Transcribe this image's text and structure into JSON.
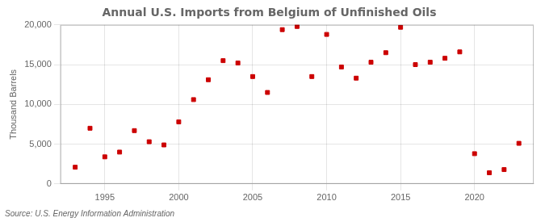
{
  "chart_data": {
    "type": "scatter",
    "title": "Annual U.S. Imports from Belgium of Unfinished Oils",
    "ylabel": "Thousand Barrels",
    "source": "Source: U.S. Energy Information Administration",
    "x": [
      1993,
      1994,
      1995,
      1996,
      1997,
      1998,
      1999,
      2000,
      2001,
      2002,
      2003,
      2004,
      2005,
      2006,
      2007,
      2008,
      2009,
      2010,
      2011,
      2012,
      2013,
      2014,
      2015,
      2016,
      2017,
      2018,
      2019,
      2020,
      2021,
      2022,
      2023
    ],
    "values": [
      2100,
      7000,
      3400,
      4000,
      6700,
      5300,
      4900,
      7800,
      10600,
      13100,
      15500,
      15200,
      13500,
      11500,
      19400,
      19800,
      13500,
      18800,
      14700,
      13300,
      15300,
      16500,
      19700,
      15000,
      15300,
      15800,
      16600,
      3800,
      1400,
      1800,
      5100
    ],
    "color": "#cc0000",
    "marker": "square",
    "xlim": [
      1992,
      2024
    ],
    "xticks": [
      1995,
      2000,
      2005,
      2010,
      2015,
      2020
    ],
    "ylim": [
      0,
      20000
    ],
    "yticks": [
      0,
      {
        "value": 5000,
        "label": "5,000"
      },
      {
        "value": 10000,
        "label": "10,000"
      },
      {
        "value": 15000,
        "label": "15,000"
      },
      {
        "value": 20000,
        "label": "20,000"
      }
    ],
    "grid": true
  }
}
